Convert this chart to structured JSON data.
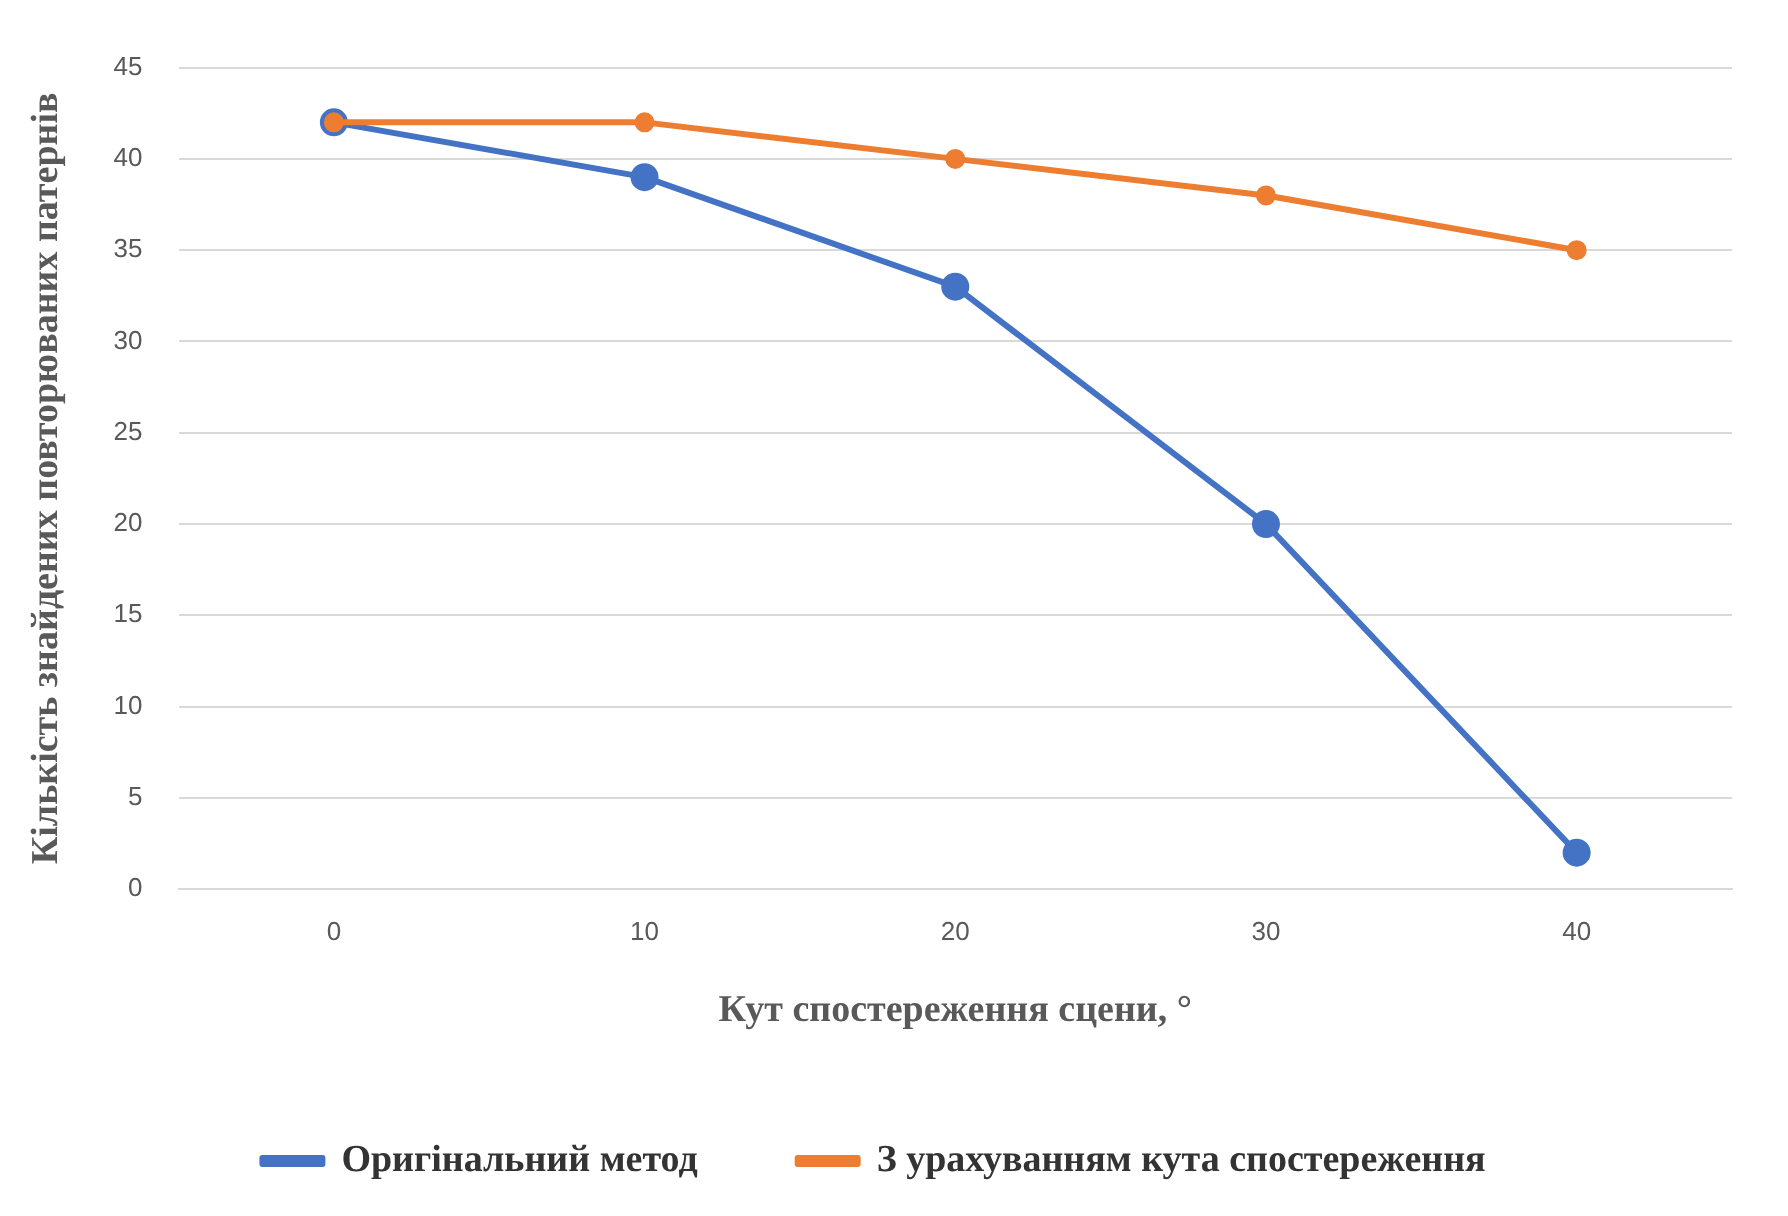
{
  "chart_data": {
    "type": "line",
    "xlabel": "Кут спостереження сцени, °",
    "ylabel": "Кількість знайдених повторюваних патернів",
    "categories": [
      "0",
      "10",
      "20",
      "30",
      "40"
    ],
    "series": [
      {
        "name": "Оригінальний метод",
        "color": "#4472c4",
        "values": [
          42,
          39,
          33,
          20,
          2
        ]
      },
      {
        "name": "З урахуванням кута спостереження",
        "color": "#ed7d31",
        "values": [
          42,
          42,
          40,
          38,
          35
        ]
      }
    ],
    "ylim": [
      0,
      45
    ],
    "yticks": [
      0,
      5,
      10,
      15,
      20,
      25,
      30,
      35,
      40,
      45
    ],
    "grid": "y",
    "legend": "bottom",
    "marker": "circle",
    "line_style": "solid"
  }
}
